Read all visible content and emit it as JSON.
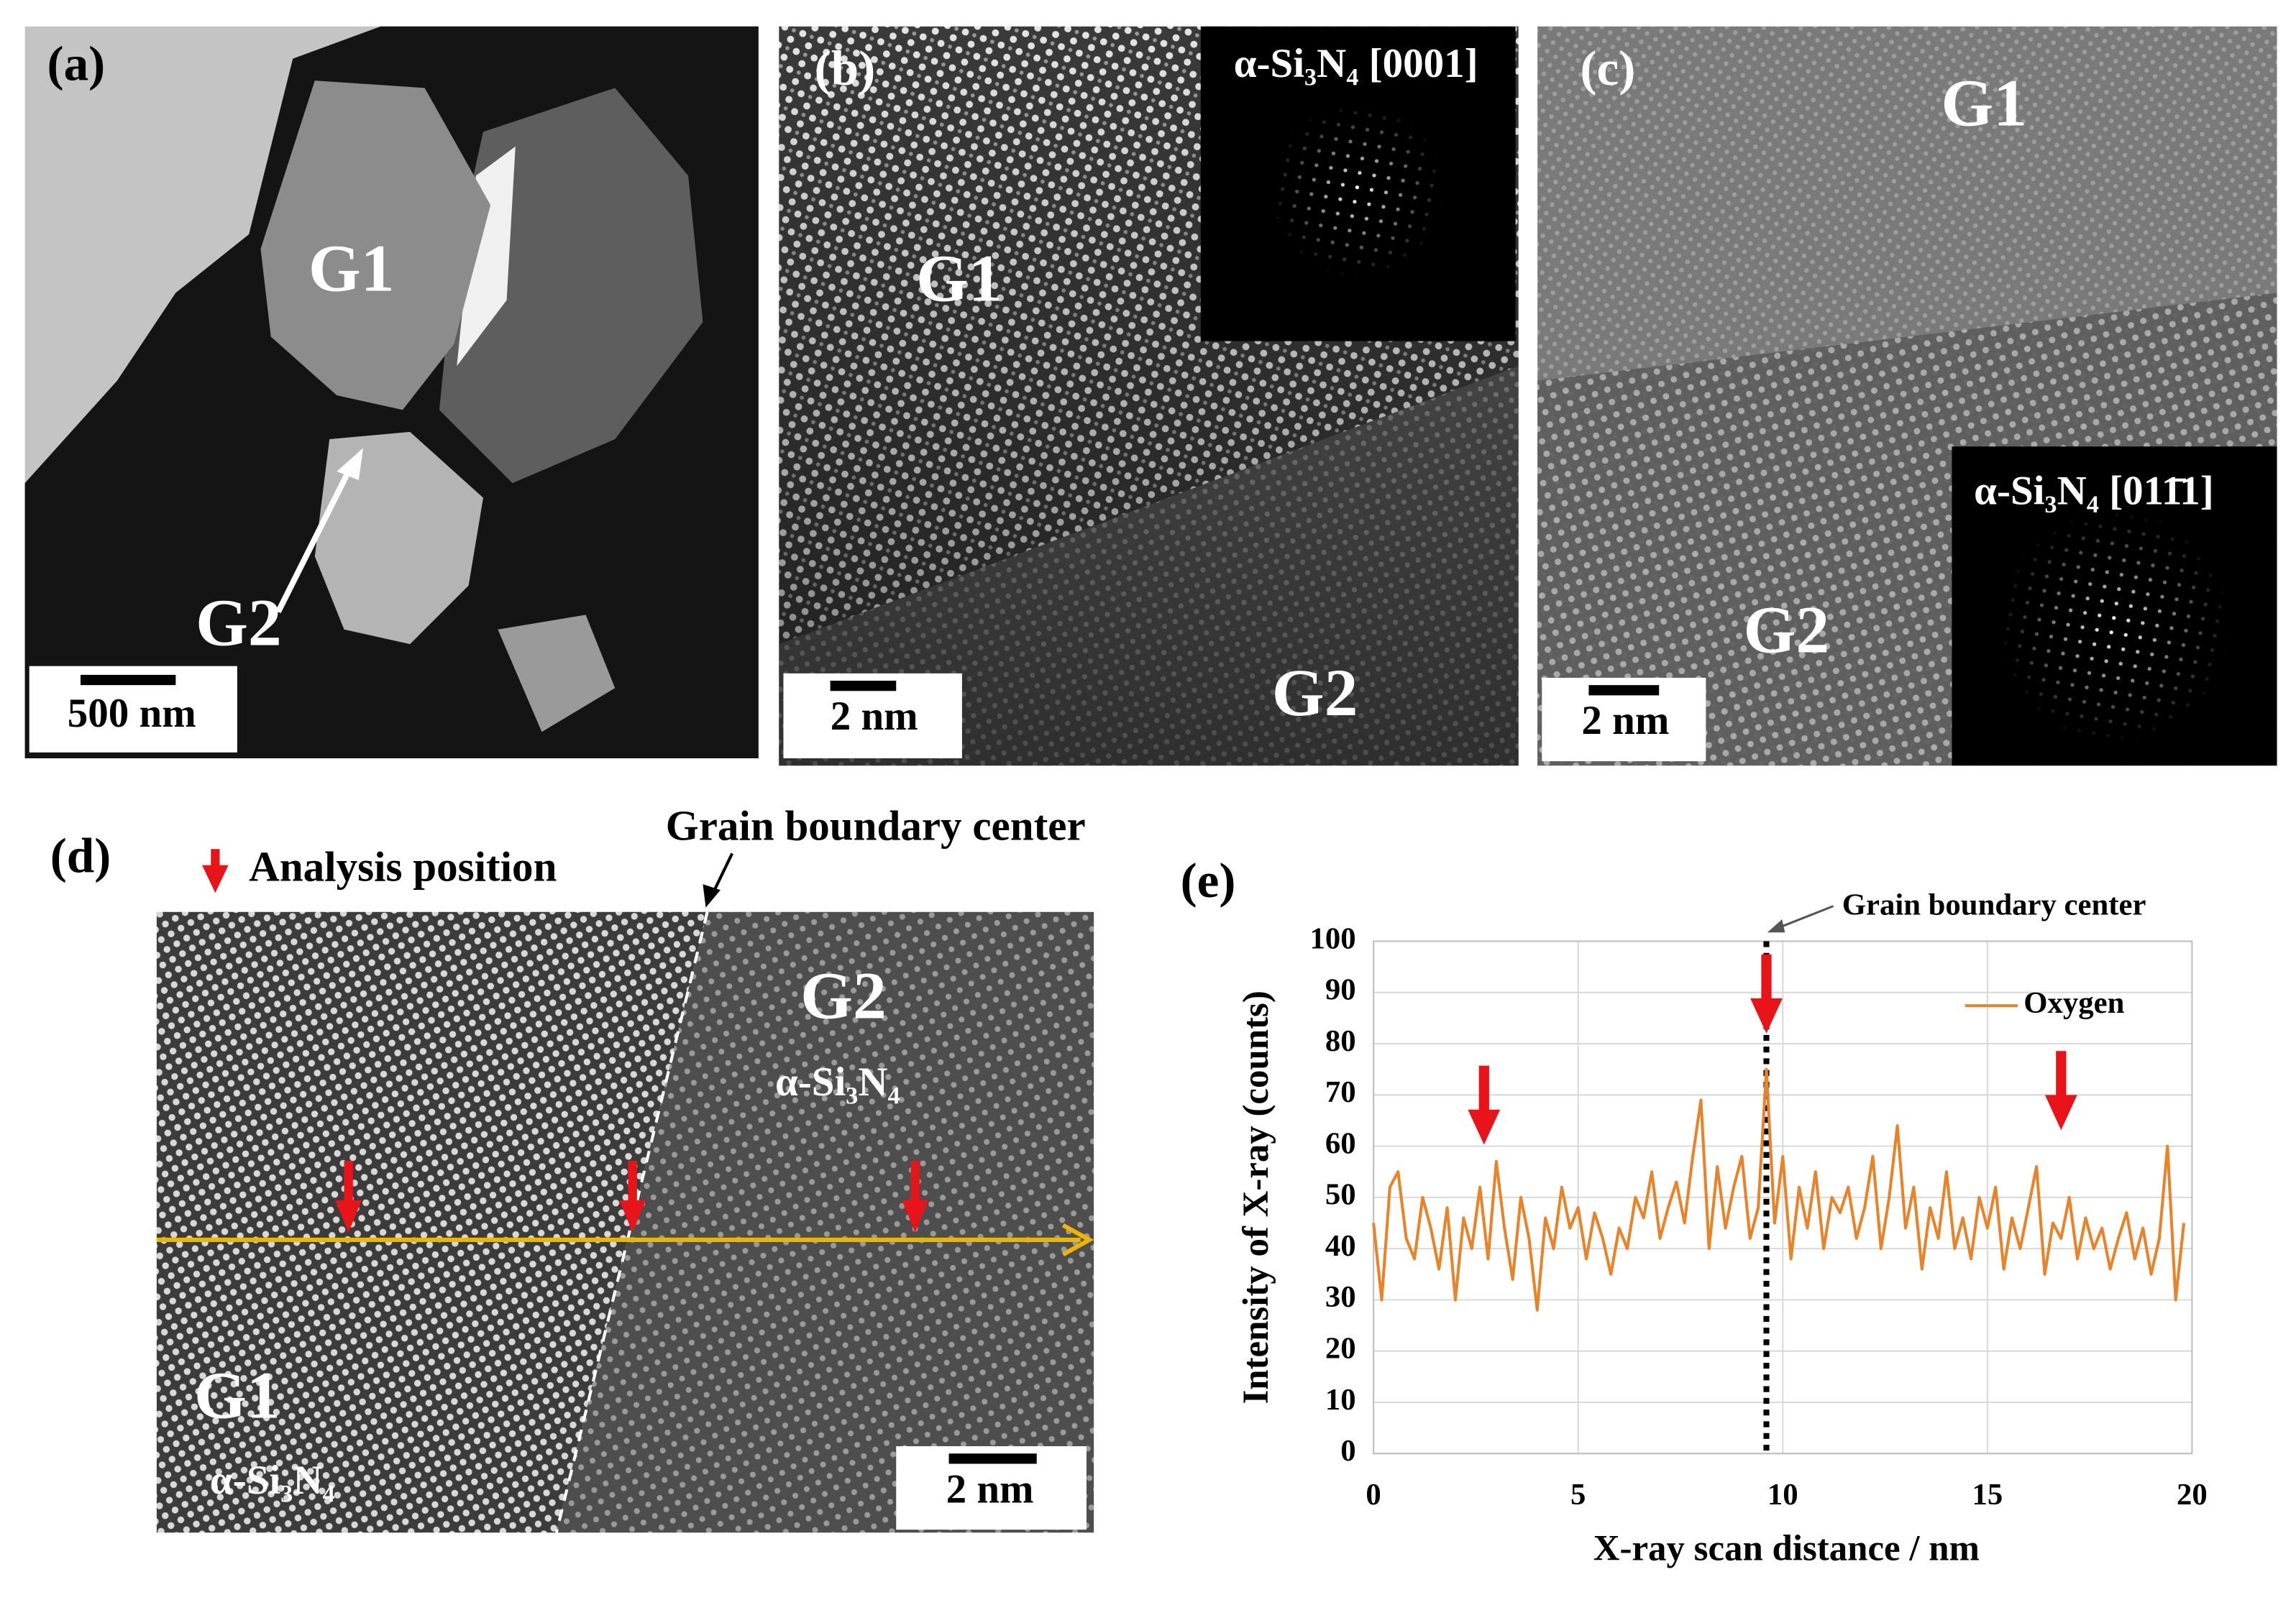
{
  "panel_a": {
    "label": "(a)",
    "grain_1": "G1",
    "grain_2": "G2",
    "scale_bar": "500 nm"
  },
  "panel_b": {
    "label": "(b)",
    "zone_axis": "α-Si₃N₄ [0001]",
    "grain_1": "G1",
    "grain_2": "G2",
    "scale_bar": "2 nm"
  },
  "panel_c": {
    "label": "(c)",
    "zone_axis": "α-Si₃N₄ [011̄1]",
    "grain_1": "G1",
    "grain_2": "G2",
    "scale_bar": "2 nm"
  },
  "panel_d": {
    "label": "(d)",
    "legend": "Analysis position",
    "boundary_label": "Grain boundary center",
    "grain_2": "G2",
    "phase_2": "α-Si₃N₄",
    "grain_1": "G1",
    "phase_1": "α-Si₃N₄",
    "scale_bar": "2 nm"
  },
  "chart_data": {
    "type": "line",
    "label": "(e)",
    "x_label": "X-ray scan distance / nm",
    "y_label": "Intensity of X-ray  (counts)",
    "annotation": "Grain boundary center",
    "boundary_x": 9.6,
    "analysis_positions": [
      2.7,
      9.6,
      16.8
    ],
    "xlim": [
      0,
      20
    ],
    "xticks": [
      0,
      5,
      10,
      15,
      20
    ],
    "ylim": [
      0,
      100
    ],
    "yticks": [
      0,
      10,
      20,
      30,
      40,
      50,
      60,
      70,
      80,
      90,
      100
    ],
    "grid": true,
    "legend": "upper right",
    "x": [
      0,
      0.2,
      0.4,
      0.6,
      0.8,
      1,
      1.2,
      1.4,
      1.6,
      1.8,
      2,
      2.2,
      2.4,
      2.6,
      2.8,
      3,
      3.2,
      3.4,
      3.6,
      3.8,
      4,
      4.2,
      4.4,
      4.6,
      4.8,
      5,
      5.2,
      5.4,
      5.6,
      5.8,
      6,
      6.2,
      6.4,
      6.6,
      6.8,
      7,
      7.2,
      7.4,
      7.6,
      7.8,
      8,
      8.2,
      8.4,
      8.6,
      8.8,
      9,
      9.2,
      9.4,
      9.6,
      9.8,
      10,
      10.2,
      10.4,
      10.6,
      10.8,
      11,
      11.2,
      11.4,
      11.6,
      11.8,
      12,
      12.2,
      12.4,
      12.6,
      12.8,
      13,
      13.2,
      13.4,
      13.6,
      13.8,
      14,
      14.2,
      14.4,
      14.6,
      14.8,
      15,
      15.2,
      15.4,
      15.6,
      15.8,
      16,
      16.2,
      16.4,
      16.6,
      16.8,
      17,
      17.2,
      17.4,
      17.6,
      17.8,
      18,
      18.2,
      18.4,
      18.6,
      18.8,
      19,
      19.2,
      19.4,
      19.6,
      19.8
    ],
    "series": [
      {
        "name": "Oxygen",
        "color": "#e8832a",
        "values": [
          45,
          30,
          52,
          55,
          42,
          38,
          50,
          44,
          36,
          48,
          30,
          46,
          40,
          52,
          38,
          57,
          44,
          34,
          50,
          42,
          28,
          46,
          40,
          52,
          44,
          48,
          38,
          47,
          42,
          35,
          44,
          40,
          50,
          46,
          55,
          42,
          48,
          53,
          45,
          58,
          69,
          40,
          56,
          44,
          52,
          58,
          42,
          48,
          75,
          45,
          58,
          38,
          52,
          44,
          55,
          40,
          50,
          47,
          52,
          42,
          48,
          58,
          40,
          50,
          64,
          44,
          52,
          36,
          48,
          42,
          55,
          40,
          46,
          38,
          50,
          44,
          52,
          36,
          46,
          40,
          48,
          56,
          35,
          45,
          42,
          50,
          38,
          46,
          40,
          44,
          36,
          42,
          47,
          38,
          44,
          35,
          42,
          60,
          30,
          45
        ]
      }
    ]
  }
}
